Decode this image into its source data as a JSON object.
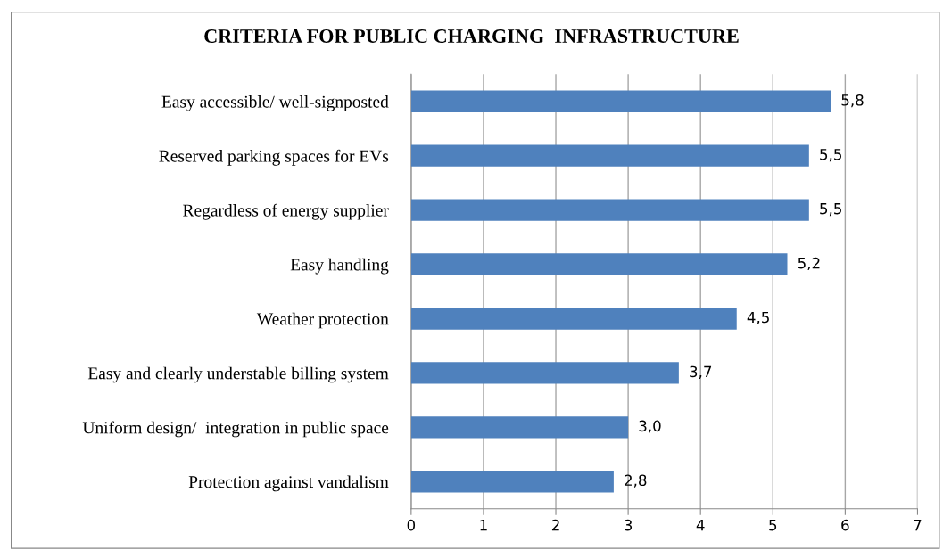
{
  "chart_data": {
    "type": "bar",
    "orientation": "horizontal",
    "title": "CRITERIA FOR PUBLIC CHARGING  INFRASTRUCTURE",
    "categories": [
      "Easy accessible/ well-signposted",
      "Reserved parking spaces for EVs",
      "Regardless of energy supplier",
      "Easy handling",
      "Weather protection",
      "Easy and clearly understable billing system",
      "Uniform design/  integration in public space",
      "Protection against vandalism"
    ],
    "values": [
      5.8,
      5.5,
      5.5,
      5.2,
      4.5,
      3.7,
      3.0,
      2.8
    ],
    "value_labels": [
      "5,8",
      "5,5",
      "5,5",
      "5,2",
      "4,5",
      "3,7",
      "3,0",
      "2,8"
    ],
    "color": "#4f81bd",
    "xlim": [
      0,
      7
    ],
    "xticks": [
      0,
      1,
      2,
      3,
      4,
      5,
      6,
      7
    ],
    "grid": "x",
    "legend": false
  }
}
